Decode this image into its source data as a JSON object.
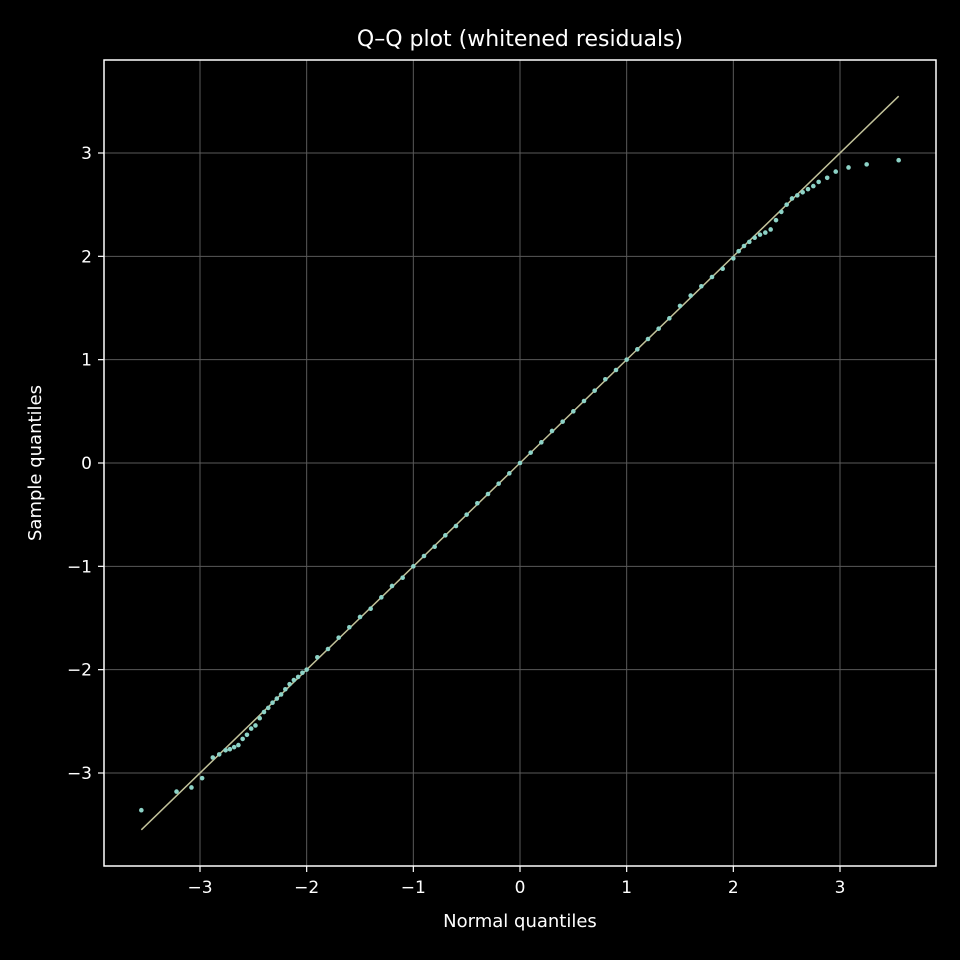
{
  "chart_data": {
    "type": "scatter",
    "title": "Q–Q plot (whitened residuals)",
    "xlabel": "Normal quantiles",
    "ylabel": "Sample quantiles",
    "xlim": [
      -3.9,
      3.9
    ],
    "ylim": [
      -3.9,
      3.9
    ],
    "grid": true,
    "x_ticks": [
      -3,
      -2,
      -1,
      0,
      1,
      2,
      3
    ],
    "y_ticks": [
      -3,
      -2,
      -1,
      0,
      1,
      2,
      3
    ],
    "x_tick_labels": [
      "−3",
      "−2",
      "−1",
      "0",
      "1",
      "2",
      "3"
    ],
    "y_tick_labels": [
      "−3",
      "−2",
      "−1",
      "0",
      "1",
      "2",
      "3"
    ],
    "reference_line": {
      "x": [
        -3.55,
        3.55
      ],
      "y": [
        -3.55,
        3.55
      ]
    },
    "points": {
      "x": [
        -3.55,
        -3.22,
        -3.08,
        -2.98,
        -2.88,
        -2.82,
        -2.76,
        -2.72,
        -2.68,
        -2.64,
        -2.6,
        -2.56,
        -2.52,
        -2.48,
        -2.44,
        -2.4,
        -2.36,
        -2.32,
        -2.28,
        -2.24,
        -2.2,
        -2.16,
        -2.12,
        -2.08,
        -2.04,
        -2.0,
        -1.9,
        -1.8,
        -1.7,
        -1.6,
        -1.5,
        -1.4,
        -1.3,
        -1.2,
        -1.1,
        -1.0,
        -0.9,
        -0.8,
        -0.7,
        -0.6,
        -0.5,
        -0.4,
        -0.3,
        -0.2,
        -0.1,
        0.0,
        0.1,
        0.2,
        0.3,
        0.4,
        0.5,
        0.6,
        0.7,
        0.8,
        0.9,
        1.0,
        1.1,
        1.2,
        1.3,
        1.4,
        1.5,
        1.6,
        1.7,
        1.8,
        1.9,
        2.0,
        2.05,
        2.1,
        2.15,
        2.2,
        2.25,
        2.3,
        2.35,
        2.4,
        2.45,
        2.5,
        2.55,
        2.6,
        2.65,
        2.7,
        2.75,
        2.8,
        2.88,
        2.96,
        3.08,
        3.25,
        3.55
      ],
      "y": [
        -3.36,
        -3.18,
        -3.14,
        -3.05,
        -2.85,
        -2.82,
        -2.78,
        -2.77,
        -2.75,
        -2.73,
        -2.67,
        -2.63,
        -2.57,
        -2.54,
        -2.47,
        -2.41,
        -2.37,
        -2.32,
        -2.28,
        -2.24,
        -2.19,
        -2.14,
        -2.1,
        -2.07,
        -2.03,
        -2.0,
        -1.88,
        -1.8,
        -1.69,
        -1.59,
        -1.49,
        -1.41,
        -1.3,
        -1.19,
        -1.11,
        -1.0,
        -0.9,
        -0.81,
        -0.7,
        -0.61,
        -0.5,
        -0.39,
        -0.3,
        -0.2,
        -0.1,
        0.0,
        0.1,
        0.2,
        0.31,
        0.4,
        0.5,
        0.6,
        0.7,
        0.81,
        0.9,
        1.0,
        1.1,
        1.2,
        1.3,
        1.4,
        1.52,
        1.62,
        1.71,
        1.8,
        1.88,
        1.98,
        2.05,
        2.1,
        2.14,
        2.18,
        2.21,
        2.23,
        2.26,
        2.35,
        2.43,
        2.5,
        2.56,
        2.59,
        2.62,
        2.65,
        2.68,
        2.72,
        2.76,
        2.82,
        2.86,
        2.89,
        2.93
      ]
    },
    "colors": {
      "background": "#000000",
      "points": "#8dd3c7",
      "reference_line": "#c2c29a",
      "axes": "#ffffff",
      "grid": "#5a5a5a"
    }
  }
}
